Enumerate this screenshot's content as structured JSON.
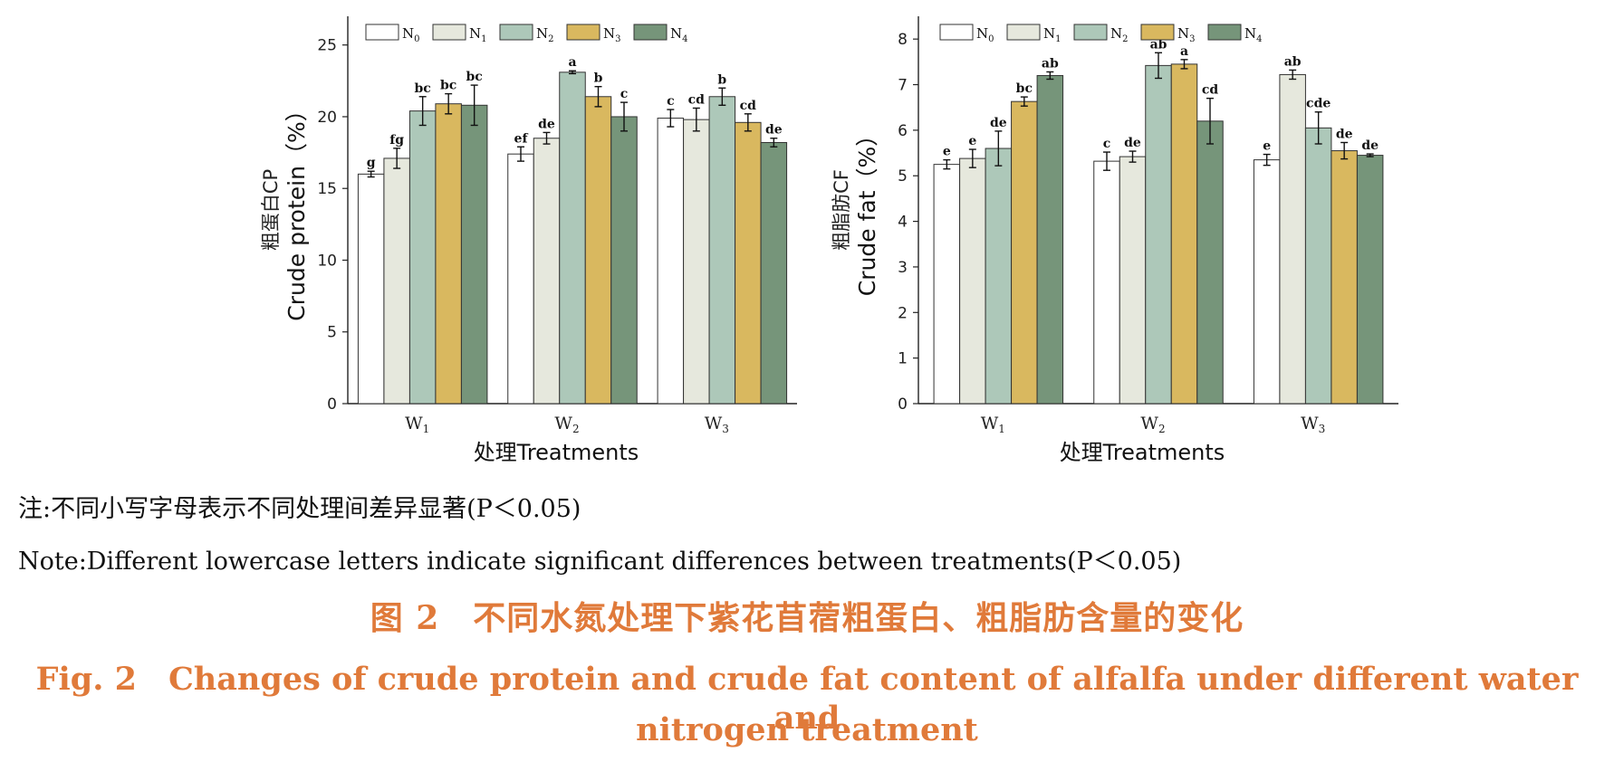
{
  "chart_data": [
    {
      "type": "bar",
      "title": "",
      "ylabel_cn": "粗蛋白CP",
      "ylabel": "Crude protein（%）",
      "xlabel": "处理Treatments",
      "categories": [
        "W1",
        "W2",
        "W3"
      ],
      "ylim": [
        0,
        27
      ],
      "yticks": [
        0,
        5,
        10,
        15,
        20,
        25
      ],
      "grid": false,
      "legend_position": "top-left",
      "series": [
        {
          "name": "N0",
          "color": "#ffffff",
          "values": [
            16.0,
            17.4,
            19.9
          ],
          "errors": [
            0.2,
            0.5,
            0.6
          ],
          "letters": [
            "g",
            "ef",
            "c"
          ]
        },
        {
          "name": "N1",
          "color": "#e6e8dd",
          "values": [
            17.1,
            18.5,
            19.8
          ],
          "errors": [
            0.7,
            0.4,
            0.8
          ],
          "letters": [
            "fg",
            "de",
            "cd"
          ]
        },
        {
          "name": "N2",
          "color": "#adc8b9",
          "values": [
            20.4,
            23.1,
            21.4
          ],
          "errors": [
            1.0,
            0.1,
            0.6
          ],
          "letters": [
            "bc",
            "a",
            "b"
          ]
        },
        {
          "name": "N3",
          "color": "#d9b85f",
          "values": [
            20.9,
            21.4,
            19.6
          ],
          "errors": [
            0.7,
            0.7,
            0.6
          ],
          "letters": [
            "bc",
            "b",
            "cd"
          ]
        },
        {
          "name": "N4",
          "color": "#76957a",
          "values": [
            20.8,
            20.0,
            18.2
          ],
          "errors": [
            1.4,
            1.0,
            0.3
          ],
          "letters": [
            "bc",
            "c",
            "de"
          ]
        }
      ]
    },
    {
      "type": "bar",
      "title": "",
      "ylabel_cn": "粗脂肪CF",
      "ylabel": "Crude fat（%）",
      "xlabel": "处理Treatments",
      "categories": [
        "W1",
        "W2",
        "W3"
      ],
      "ylim": [
        0,
        8.5
      ],
      "yticks": [
        0,
        1,
        2,
        3,
        4,
        5,
        6,
        7,
        8
      ],
      "grid": false,
      "legend_position": "top-left",
      "series": [
        {
          "name": "N0",
          "color": "#ffffff",
          "values": [
            5.25,
            5.32,
            5.35
          ],
          "errors": [
            0.1,
            0.2,
            0.12
          ],
          "letters": [
            "e",
            "c",
            "e"
          ]
        },
        {
          "name": "N1",
          "color": "#e6e8dd",
          "values": [
            5.38,
            5.42,
            7.22
          ],
          "errors": [
            0.2,
            0.12,
            0.1
          ],
          "letters": [
            "e",
            "de",
            "ab"
          ]
        },
        {
          "name": "N2",
          "color": "#adc8b9",
          "values": [
            5.6,
            7.42,
            6.05
          ],
          "errors": [
            0.38,
            0.28,
            0.35
          ],
          "letters": [
            "de",
            "ab",
            "cde"
          ]
        },
        {
          "name": "N3",
          "color": "#d9b85f",
          "values": [
            6.63,
            7.45,
            5.55
          ],
          "errors": [
            0.1,
            0.1,
            0.18
          ],
          "letters": [
            "bc",
            "a",
            "de"
          ]
        },
        {
          "name": "N4",
          "color": "#76957a",
          "values": [
            7.2,
            6.2,
            5.45
          ],
          "errors": [
            0.08,
            0.5,
            0.03
          ],
          "letters": [
            "ab",
            "cd",
            "de"
          ]
        }
      ]
    }
  ],
  "notes": {
    "cn": "注:不同小写字母表示不同处理间差异显著(P＜0.05)",
    "en": "Note:Different lowercase letters indicate significant differences between treatments(P＜0.05)"
  },
  "caption": {
    "cn": "图 2　不同水氮处理下紫花苜蓿粗蛋白、粗脂肪含量的变化",
    "en_line1": "Fig. 2　Changes of crude protein and crude fat content of alfalfa under different water and",
    "en_line2": "nitrogen treatment"
  },
  "colors": {
    "caption": "#e07a3a",
    "axis": "#222222"
  }
}
